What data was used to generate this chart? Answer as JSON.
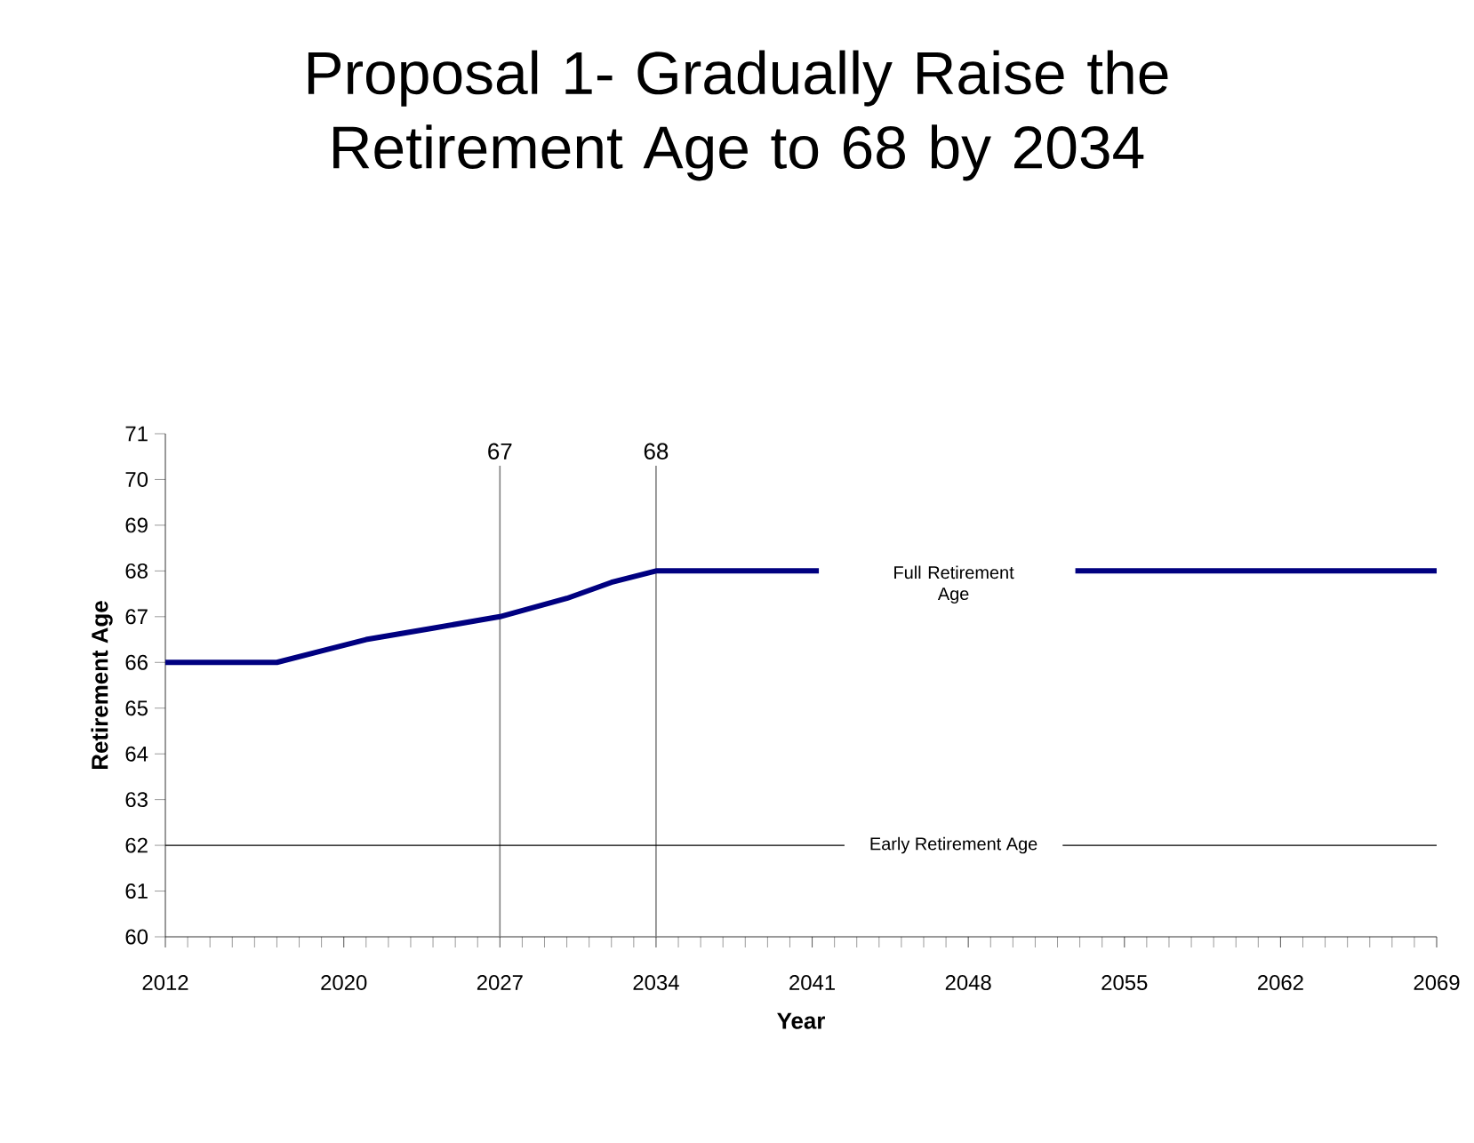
{
  "chart_data": {
    "type": "line",
    "title": "Proposal 1- Gradually Raise the Retirement Age to 68 by 2034",
    "xlabel": "Year",
    "ylabel": "Retirement Age",
    "x": [
      2012,
      2017,
      2019,
      2021,
      2024,
      2027,
      2030,
      2032,
      2034,
      2041.3,
      2047,
      2052.8,
      2069
    ],
    "series": [
      {
        "color": "#000080",
        "values": [
          66,
          66,
          66.25,
          66.5,
          66.75,
          67,
          67.4,
          67.75,
          68,
          68,
          null,
          68,
          68
        ]
      }
    ],
    "xlim": [
      2012,
      2069
    ],
    "xticks": [
      2012,
      2020,
      2027,
      2034,
      2041,
      2048,
      2055,
      2062,
      2069
    ],
    "ylim": [
      60,
      71
    ],
    "yticks": [
      60,
      61,
      62,
      63,
      64,
      65,
      66,
      67,
      68,
      69,
      70,
      71
    ],
    "ref_lines": [
      {
        "axis": "x",
        "value": 2027,
        "color": "#808080"
      },
      {
        "axis": "x",
        "value": 2034,
        "color": "#808080"
      },
      {
        "axis": "y",
        "value": 62,
        "label": "Early Retirement Age",
        "color": "#000000"
      }
    ],
    "annotations": [
      "67",
      "68",
      "Full Retirement Age"
    ],
    "grid": false,
    "line_style": "solid"
  }
}
